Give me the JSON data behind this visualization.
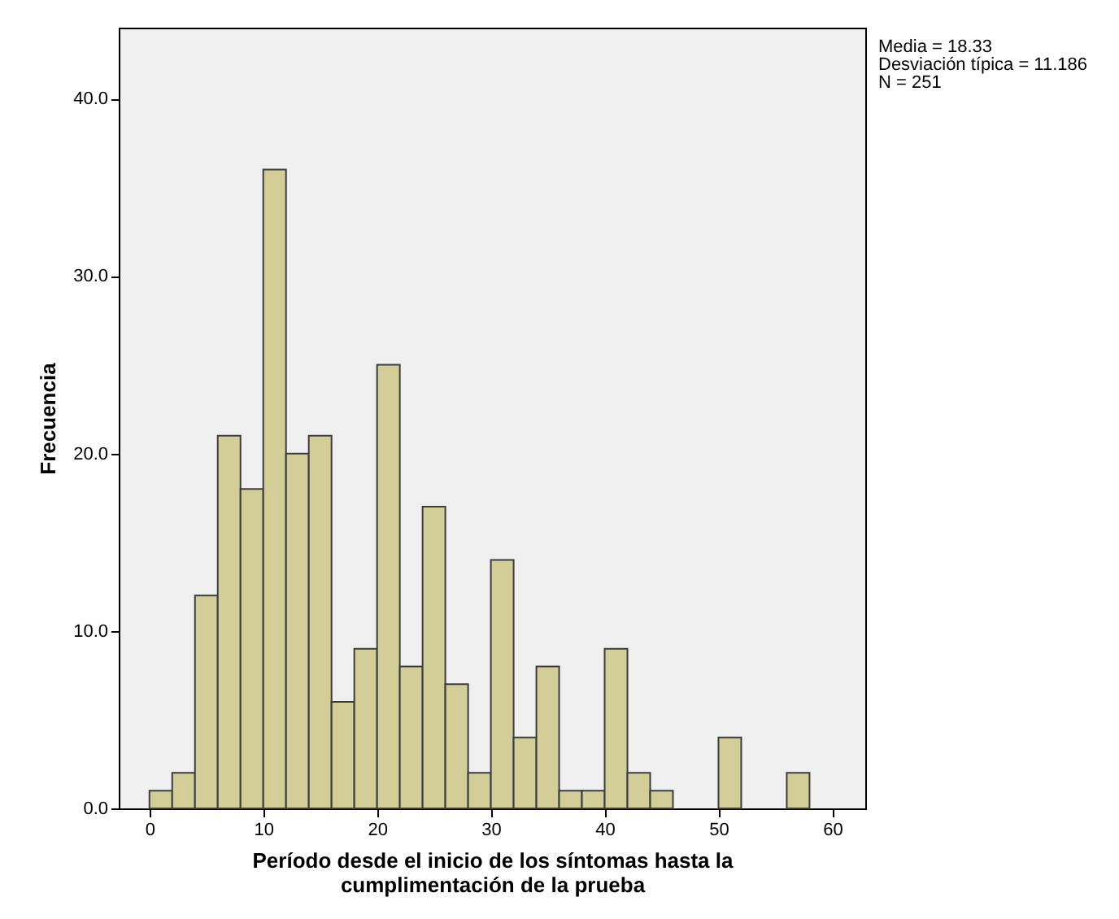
{
  "chart_data": {
    "type": "histogram",
    "xlabel": "Período desde el inicio de los síntomas hasta la\ncumplimentación de la prueba",
    "ylabel": "Frecuencia",
    "annotations": [
      "Media = 18.33",
      "Desviación típica = 11.186",
      "N = 251"
    ],
    "bins": [
      0,
      2,
      4,
      6,
      8,
      10,
      12,
      14,
      16,
      18,
      20,
      22,
      24,
      26,
      28,
      30,
      32,
      34,
      36,
      38,
      40,
      42,
      44,
      46,
      48,
      50,
      52,
      54,
      56,
      58
    ],
    "values": [
      1,
      2,
      12,
      21,
      18,
      36,
      20,
      21,
      6,
      9,
      25,
      8,
      17,
      7,
      2,
      14,
      4,
      8,
      1,
      1,
      9,
      2,
      1,
      0,
      0,
      4,
      0,
      0,
      2
    ],
    "color": "#d3ce98",
    "xlim": [
      -2.7,
      62.9
    ],
    "xticks": [
      0,
      10,
      20,
      30,
      40,
      50,
      60
    ],
    "ylim": [
      0,
      44
    ],
    "yticks": [
      {
        "value": 0,
        "label": "0.0"
      },
      {
        "value": 10,
        "label": "10.0"
      },
      {
        "value": 20,
        "label": "20.0"
      },
      {
        "value": 30,
        "label": "30.0"
      },
      {
        "value": 40,
        "label": "40.0"
      }
    ],
    "grid": false
  }
}
